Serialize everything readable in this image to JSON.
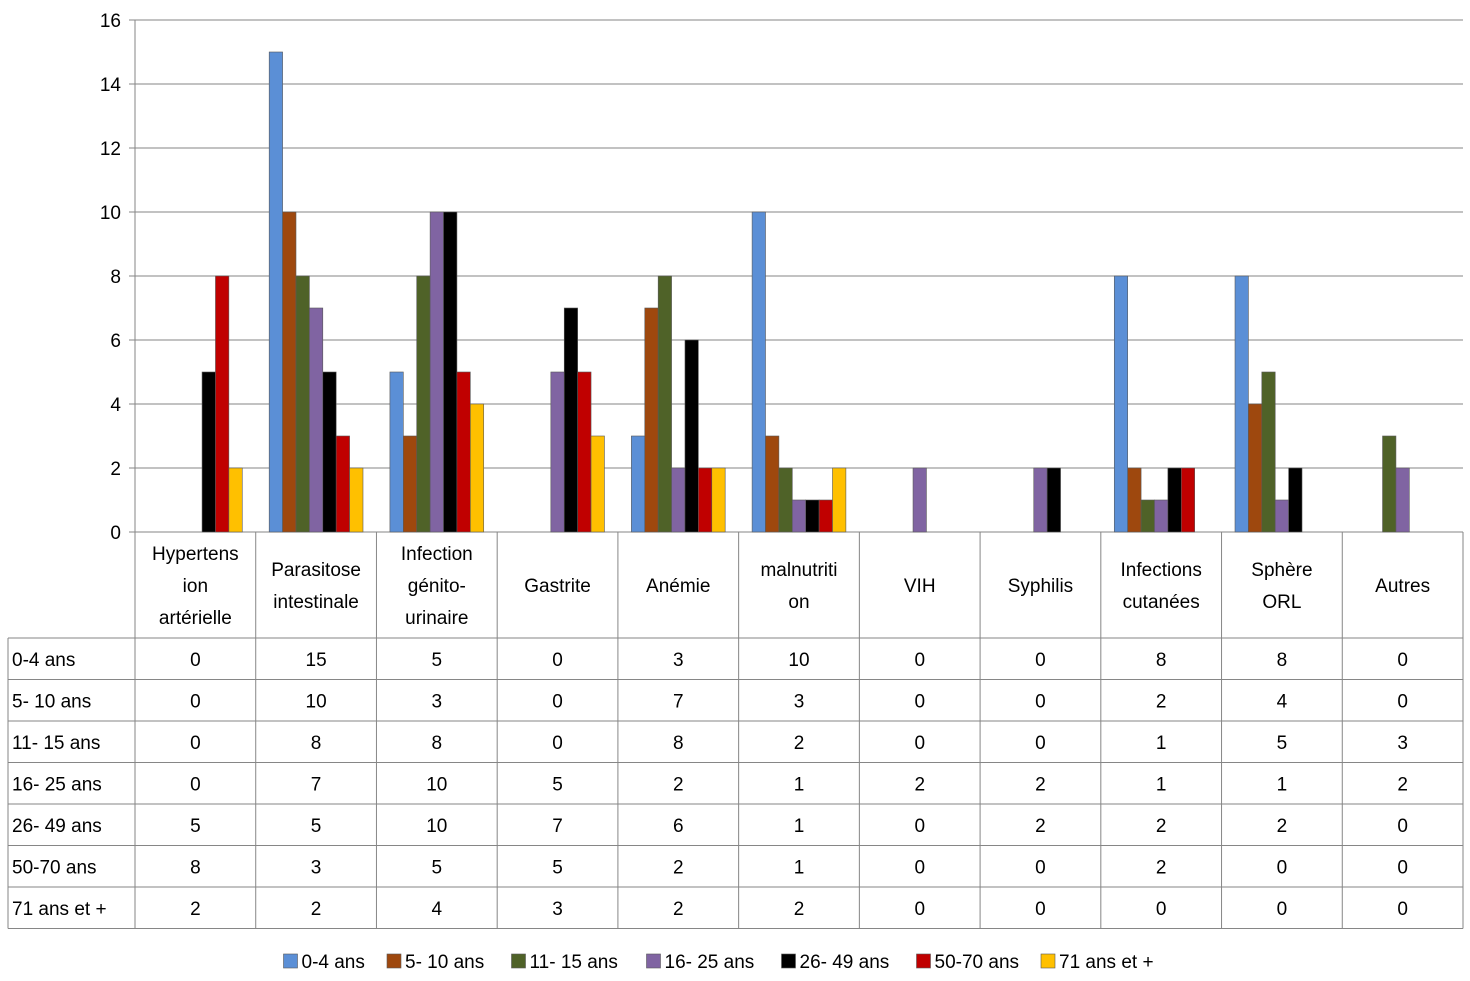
{
  "chart_data": {
    "type": "bar",
    "categories": [
      [
        "Hypertens",
        "ion",
        "artérielle"
      ],
      [
        "Parasitose",
        "intestinale"
      ],
      [
        "Infection",
        "génito-",
        "urinaire"
      ],
      [
        "Gastrite"
      ],
      [
        "Anémie"
      ],
      [
        "malnutriti",
        "on"
      ],
      [
        "VIH"
      ],
      [
        "Syphilis"
      ],
      [
        "Infections",
        "cutanées"
      ],
      [
        "Sphère",
        "ORL"
      ],
      [
        "Autres"
      ]
    ],
    "series": [
      {
        "name": "0-4 ans",
        "color": "#5B8FD6",
        "values": [
          0,
          15,
          5,
          0,
          3,
          10,
          0,
          0,
          8,
          8,
          0
        ]
      },
      {
        "name": "5- 10 ans",
        "color": "#9E480E",
        "values": [
          0,
          10,
          3,
          0,
          7,
          3,
          0,
          0,
          2,
          4,
          0
        ]
      },
      {
        "name": "11- 15 ans",
        "color": "#4F6228",
        "values": [
          0,
          8,
          8,
          0,
          8,
          2,
          0,
          0,
          1,
          5,
          3
        ]
      },
      {
        "name": "16- 25 ans",
        "color": "#8064A2",
        "values": [
          0,
          7,
          10,
          5,
          2,
          1,
          2,
          2,
          1,
          1,
          2
        ]
      },
      {
        "name": "26- 49 ans",
        "color": "#000000",
        "values": [
          5,
          5,
          10,
          7,
          6,
          1,
          0,
          2,
          2,
          2,
          0
        ]
      },
      {
        "name": "50-70 ans",
        "color": "#C00000",
        "values": [
          8,
          3,
          5,
          5,
          2,
          1,
          0,
          0,
          2,
          0,
          0
        ]
      },
      {
        "name": "71 ans et +",
        "color": "#FFC000",
        "values": [
          2,
          2,
          4,
          3,
          2,
          2,
          0,
          0,
          0,
          0,
          0
        ]
      }
    ],
    "yaxis": {
      "ticks": [
        "0",
        "2",
        "4",
        "6",
        "8",
        "10",
        "12",
        "14",
        "16"
      ],
      "ylim": [
        0,
        16
      ]
    },
    "grid": true,
    "data_table": true,
    "legend_position": "bottom"
  }
}
